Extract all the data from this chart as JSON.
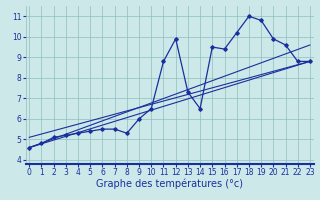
{
  "xlabel": "Graphe des températures (°c)",
  "bg_color": "#cce8e8",
  "line_color": "#1a2f9e",
  "measured_x": [
    0,
    1,
    2,
    3,
    4,
    5,
    6,
    7,
    8,
    9,
    10,
    11,
    12,
    13,
    14,
    15,
    16,
    17,
    18,
    19,
    20,
    21,
    22,
    23
  ],
  "measured_y": [
    4.6,
    4.8,
    5.1,
    5.2,
    5.3,
    5.4,
    5.5,
    5.5,
    5.3,
    6.0,
    6.5,
    8.8,
    9.9,
    7.3,
    6.5,
    9.5,
    9.4,
    10.2,
    11.0,
    10.8,
    9.9,
    9.6,
    8.8,
    8.8
  ],
  "trend1_x": [
    0,
    23
  ],
  "trend1_y": [
    4.6,
    8.8
  ],
  "trend2_x": [
    0,
    23
  ],
  "trend2_y": [
    4.6,
    9.6
  ],
  "trend3_x": [
    0,
    23
  ],
  "trend3_y": [
    5.1,
    8.8
  ],
  "xlim": [
    -0.3,
    23.3
  ],
  "ylim": [
    3.8,
    11.5
  ],
  "xticks": [
    0,
    1,
    2,
    3,
    4,
    5,
    6,
    7,
    8,
    9,
    10,
    11,
    12,
    13,
    14,
    15,
    16,
    17,
    18,
    19,
    20,
    21,
    22,
    23
  ],
  "yticks": [
    4,
    5,
    6,
    7,
    8,
    9,
    10,
    11
  ],
  "grid_color": "#8fbfbf",
  "xlabel_fontsize": 7.0,
  "tick_fontsize": 5.5
}
